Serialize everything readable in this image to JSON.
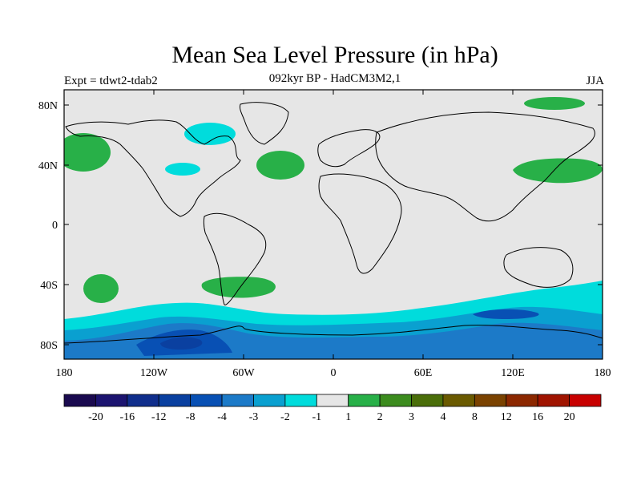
{
  "title": "Mean Sea Level Pressure (in hPa)",
  "subtitle": "092kyr BP - HadCM3M2,1",
  "experiment": "Expt = tdwt2-tdab2",
  "season": "JJA",
  "y_ticks": [
    "80N",
    "40N",
    "0",
    "40S",
    "80S"
  ],
  "x_ticks": [
    "180",
    "120W",
    "60W",
    "0",
    "60E",
    "120E",
    "180"
  ],
  "colorbar": {
    "colors": [
      "#1a0a4f",
      "#1c1470",
      "#102e8c",
      "#0a40a0",
      "#0850b4",
      "#1c7ac8",
      "#0aa0d0",
      "#00dcdc",
      "#e6e6e6",
      "#28b048",
      "#3c8c1e",
      "#4a6e0a",
      "#6a5a00",
      "#7a4200",
      "#8c2800",
      "#a01400",
      "#c80000"
    ],
    "labels": [
      "-20",
      "-16",
      "-12",
      "-8",
      "-4",
      "-3",
      "-2",
      "-1",
      "1",
      "2",
      "3",
      "4",
      "8",
      "12",
      "16",
      "20"
    ]
  },
  "colors": {
    "neutral": "#e6e6e6",
    "green": "#28b048",
    "cyan": "#00dcdc",
    "light_blue": "#0aa0d0",
    "mid_blue": "#1c7ac8",
    "dark_blue": "#0850b4",
    "deep_blue": "#0a40a0"
  }
}
